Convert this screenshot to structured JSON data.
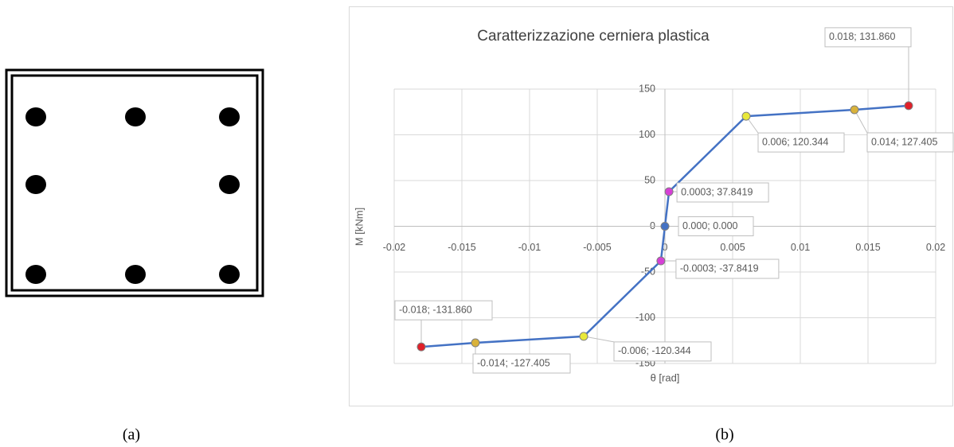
{
  "captions": [
    "(a)",
    "(b)"
  ],
  "chart_data": {
    "type": "line",
    "title": "Caratterizzazione cerniera plastica",
    "xlabel": "θ [rad]",
    "ylabel": "M [kNm]",
    "x": [
      -0.018,
      -0.014,
      -0.006,
      -0.0003,
      0,
      0.0003,
      0.006,
      0.014,
      0.018
    ],
    "values": [
      -131.86,
      -127.405,
      -120.344,
      -37.8419,
      0,
      37.8419,
      120.344,
      127.405,
      131.86
    ],
    "value_labels": [
      "-0.018; -131.860",
      "-0.014; -127.405",
      "-0.006; -120.344",
      "-0.0003; -37.8419",
      "0.000; 0.000",
      "0.0003; 37.8419",
      "0.006; 120.344",
      "0.014; 127.405",
      "0.018; 131.860"
    ],
    "color": "#4472c4",
    "point_colors": [
      "#e0202a",
      "#d9b23a",
      "#e8e83a",
      "#d63fd6",
      "#4472c4",
      "#d63fd6",
      "#e8e83a",
      "#d9b23a",
      "#e0202a"
    ],
    "xlim": [
      -0.02,
      0.02
    ],
    "xticks": [
      -0.02,
      -0.015,
      -0.01,
      -0.005,
      0,
      0.005,
      0.01,
      0.015,
      0.02
    ],
    "ylim": [
      -150,
      150
    ],
    "yticks": [
      -150,
      -100,
      -50,
      0,
      50,
      100,
      150
    ],
    "grid": true
  }
}
